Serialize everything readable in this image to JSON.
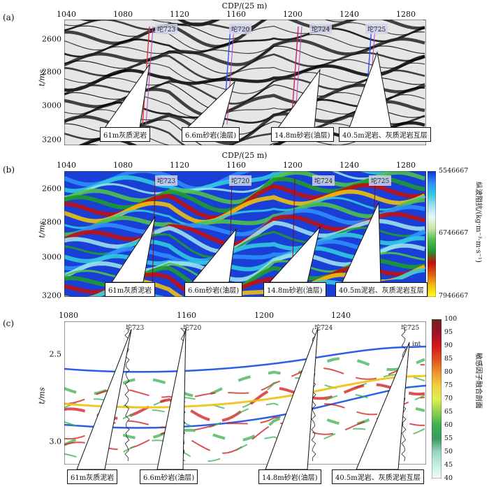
{
  "panel_a": {
    "label": "(a)",
    "xtitle": "CDP/(25 m)",
    "xticks": [
      "1040",
      "1080",
      "1120",
      "1160",
      "1200",
      "1240",
      "1280"
    ],
    "yticks": [
      "2600",
      "2800",
      "3000",
      "3200"
    ],
    "ytitle": "t/ms",
    "wells": [
      "坨723",
      "坨720",
      "坨724",
      "坨725"
    ],
    "callouts": [
      "61m灰质泥岩",
      "6.6m砂岩(油层)",
      "14.8m砂岩(油层)",
      "40.5m泥岩、灰质泥岩互层"
    ]
  },
  "panel_b": {
    "label": "(b)",
    "xtitle": "CDP/(25 m)",
    "xticks": [
      "1040",
      "1080",
      "1120",
      "1160",
      "1200",
      "1240",
      "1280"
    ],
    "yticks": [
      "2600",
      "2800",
      "3000",
      "3200"
    ],
    "ytitle": "t/ms",
    "wells": [
      "坨723",
      "坨720",
      "坨724",
      "坨725"
    ],
    "callouts": [
      "61m灰质泥岩",
      "6.6m砂岩(油层)",
      "14.8m砂岩(油层)",
      "40.5m泥岩、灰质泥岩互层"
    ],
    "colorbar": {
      "ticks": [
        "5546667",
        "6746667",
        "7946667"
      ],
      "title": "纵波阻抗/(kg·m⁻³·m·s⁻¹)",
      "colors": [
        "#1030d0",
        "#2f8cff",
        "#32c8e0",
        "#9be0ee",
        "#e8f6f8",
        "#cfe6a8",
        "#4fc04f",
        "#1f9a2f",
        "#c01010",
        "#e05a10",
        "#f0c010",
        "#ffff20"
      ]
    }
  },
  "panel_c": {
    "label": "(c)",
    "xticks": [
      "1080",
      "1160",
      "1200",
      "1240"
    ],
    "yticks": [
      "2.5",
      "3.0"
    ],
    "ytitle": "t/ms",
    "wells": [
      "坨723",
      "坨720",
      "坨724",
      "坨725"
    ],
    "int_label": "int",
    "callouts": [
      "61m灰质泥岩",
      "6.6m砂岩(油层)",
      "14.8m砂岩(油层)",
      "40.5m泥岩、灰质泥岩互层"
    ],
    "colorbar": {
      "ticks": [
        "100",
        "95",
        "90",
        "85",
        "80",
        "75",
        "70",
        "65",
        "60",
        "55",
        "50",
        "45",
        "40"
      ],
      "title": "敏感因子融合剖面",
      "colors": [
        "#6a2a1a",
        "#a0102a",
        "#d01818",
        "#e05020",
        "#f09030",
        "#f0d040",
        "#e0ef50",
        "#8fd050",
        "#3cb050",
        "#3a9a60",
        "#9ad6c0",
        "#c8eee6",
        "#f2fbf9"
      ]
    }
  }
}
